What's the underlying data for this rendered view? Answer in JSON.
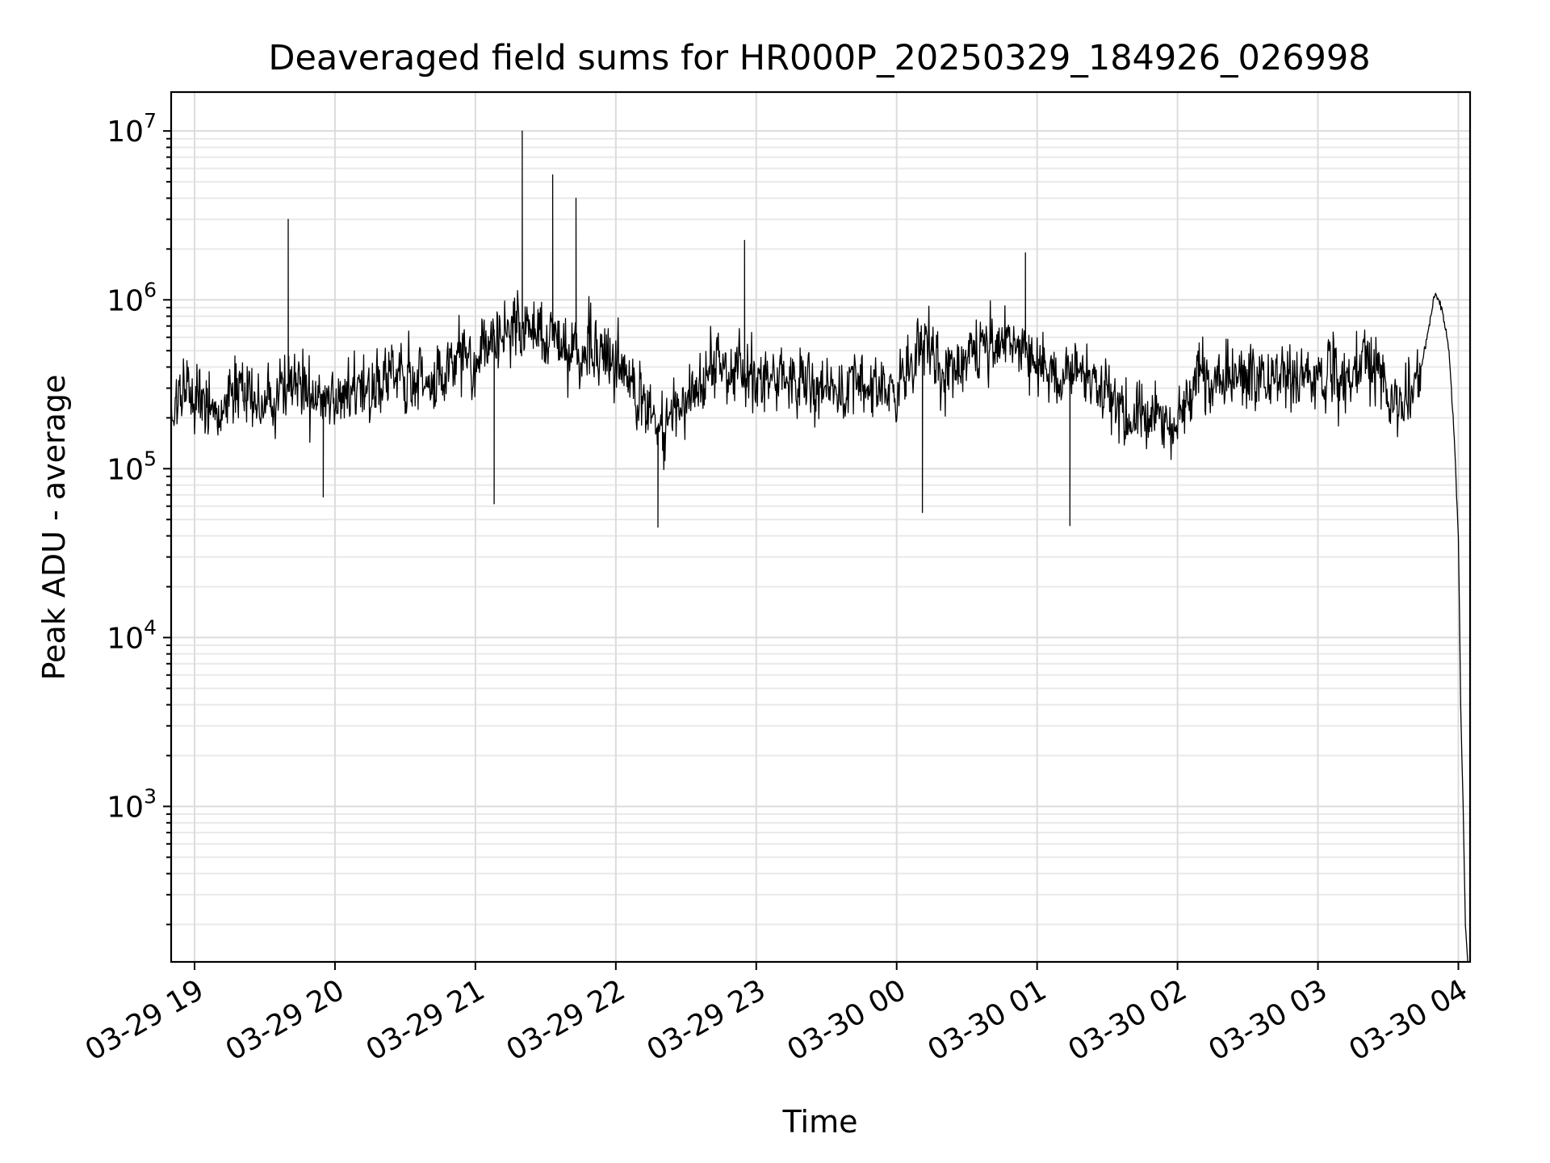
{
  "chart_data": {
    "type": "line",
    "title": "Deaveraged field sums for HR000P_20250329_184926_026998",
    "xlabel": "Time",
    "ylabel": "Peak ADU - average",
    "yscale": "log",
    "xlim": [
      "2025-03-29 18:50",
      "2025-03-30 04:05"
    ],
    "ylim": [
      120,
      17000000
    ],
    "grid": "both",
    "line_color": "#000000",
    "x_ticks": [
      "03-29 19",
      "03-29 20",
      "03-29 21",
      "03-29 22",
      "03-29 23",
      "03-30 00",
      "03-30 01",
      "03-30 02",
      "03-30 03",
      "03-30 04"
    ],
    "x_tick_rotation_deg": 30,
    "y_ticks": [
      {
        "base": "10",
        "exp": "3",
        "value": 1000
      },
      {
        "base": "10",
        "exp": "4",
        "value": 10000
      },
      {
        "base": "10",
        "exp": "5",
        "value": 100000
      },
      {
        "base": "10",
        "exp": "6",
        "value": 1000000
      },
      {
        "base": "10",
        "exp": "7",
        "value": 10000000
      }
    ],
    "series": [
      {
        "x": [
          "2025-03-29 18:50",
          "2025-03-29 19:00",
          "2025-03-29 19:10",
          "2025-03-29 19:20",
          "2025-03-29 19:30",
          "2025-03-29 19:40",
          "2025-03-29 19:50",
          "2025-03-29 20:00",
          "2025-03-29 20:10",
          "2025-03-29 20:20",
          "2025-03-29 20:30",
          "2025-03-29 20:40",
          "2025-03-29 20:50",
          "2025-03-29 21:00",
          "2025-03-29 21:10",
          "2025-03-29 21:20",
          "2025-03-29 21:30",
          "2025-03-29 21:40",
          "2025-03-29 21:50",
          "2025-03-29 22:00",
          "2025-03-29 22:10",
          "2025-03-29 22:20",
          "2025-03-29 22:30",
          "2025-03-29 22:40",
          "2025-03-29 22:50",
          "2025-03-29 23:00",
          "2025-03-29 23:10",
          "2025-03-29 23:20",
          "2025-03-29 23:30",
          "2025-03-29 23:40",
          "2025-03-29 23:50",
          "2025-03-30 00:00",
          "2025-03-30 00:10",
          "2025-03-30 00:20",
          "2025-03-30 00:30",
          "2025-03-30 00:40",
          "2025-03-30 00:50",
          "2025-03-30 01:00",
          "2025-03-30 01:10",
          "2025-03-30 01:20",
          "2025-03-30 01:30",
          "2025-03-30 01:40",
          "2025-03-30 01:50",
          "2025-03-30 02:00",
          "2025-03-30 02:10",
          "2025-03-30 02:20",
          "2025-03-30 02:30",
          "2025-03-30 02:40",
          "2025-03-30 02:50",
          "2025-03-30 03:00",
          "2025-03-30 03:10",
          "2025-03-30 03:20",
          "2025-03-30 03:30",
          "2025-03-30 03:40",
          "2025-03-30 03:45",
          "2025-03-30 03:50",
          "2025-03-30 03:53",
          "2025-03-30 03:56",
          "2025-03-30 03:58",
          "2025-03-30 04:00",
          "2025-03-30 04:01",
          "2025-03-30 04:02",
          "2025-03-30 04:03",
          "2025-03-30 04:04"
        ],
        "y": [
          250000,
          280000,
          220000,
          300000,
          240000,
          320000,
          260000,
          280000,
          300000,
          310000,
          330000,
          350000,
          420000,
          480000,
          650000,
          700000,
          600000,
          520000,
          480000,
          400000,
          280000,
          160000,
          260000,
          400000,
          380000,
          330000,
          350000,
          330000,
          300000,
          290000,
          300000,
          310000,
          520000,
          380000,
          450000,
          520000,
          560000,
          450000,
          330000,
          420000,
          300000,
          180000,
          220000,
          200000,
          330000,
          320000,
          360000,
          330000,
          360000,
          340000,
          330000,
          500000,
          300000,
          260000,
          450000,
          1100000,
          900000,
          500000,
          180000,
          40000,
          4000,
          1000,
          200,
          120
        ],
        "peaks": [
          {
            "x": "2025-03-29 19:40",
            "y": 3000000
          },
          {
            "x": "2025-03-29 21:20",
            "y": 10000000
          },
          {
            "x": "2025-03-29 21:33",
            "y": 5500000
          },
          {
            "x": "2025-03-29 21:43",
            "y": 4000000
          },
          {
            "x": "2025-03-29 22:55",
            "y": 2250000
          },
          {
            "x": "2025-03-30 00:55",
            "y": 1900000
          }
        ],
        "troughs": [
          {
            "x": "2025-03-29 22:18",
            "y": 45000
          },
          {
            "x": "2025-03-30 01:14",
            "y": 46000
          },
          {
            "x": "2025-03-30 00:11",
            "y": 55000
          },
          {
            "x": "2025-03-29 19:55",
            "y": 68000
          },
          {
            "x": "2025-03-29 21:08",
            "y": 62000
          }
        ]
      }
    ]
  }
}
